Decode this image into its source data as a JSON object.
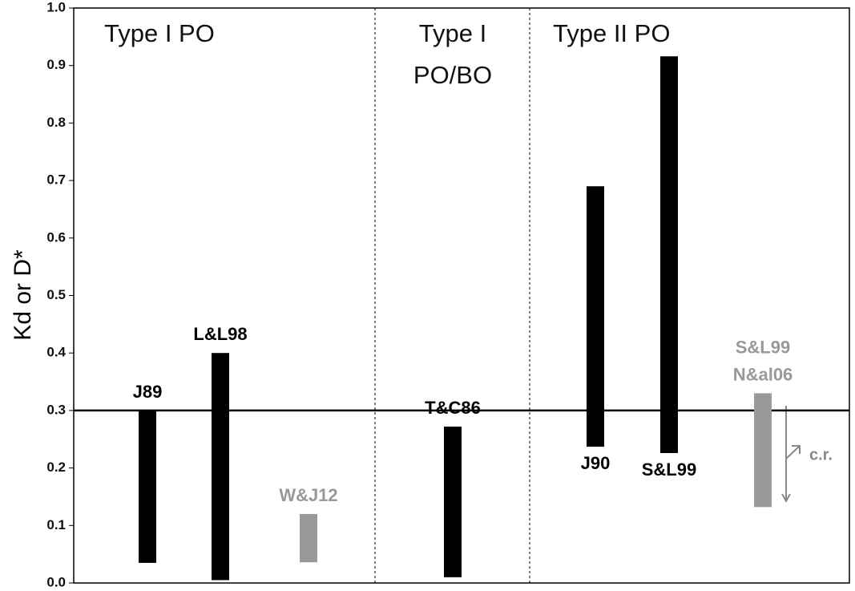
{
  "chart_data": {
    "type": "range_bar",
    "y_label": "Kd or D*",
    "ylim": [
      0,
      1
    ],
    "yticks": [
      {
        "value": 0,
        "label": "0.0"
      },
      0.1,
      0.2,
      0.3,
      0.4,
      0.5,
      0.6,
      0.7,
      0.8,
      0.9,
      {
        "value": 1,
        "label": "1.0"
      }
    ],
    "reference_line": 0.3,
    "sections": [
      [
        "Type I PO"
      ],
      [
        "Type I",
        "PO/BO"
      ],
      [
        "Type II PO"
      ]
    ],
    "bars": [
      {
        "label": [
          "J89"
        ],
        "low": 0.035,
        "high": 0.3,
        "color": "#000000"
      },
      {
        "label": [
          "L&L98"
        ],
        "low": 0.005,
        "high": 0.4,
        "color": "#000000"
      },
      {
        "label": [
          "W&J12"
        ],
        "low": 0.036,
        "high": 0.12,
        "color": "#999999"
      },
      {
        "label": [
          "T&C86"
        ],
        "low": 0.01,
        "high": 0.272,
        "color": "#000000"
      },
      {
        "label": [
          "J90"
        ],
        "low": 0.237,
        "high": 0.69,
        "color": "#000000"
      },
      {
        "label": [
          "S&L99"
        ],
        "low": 0.226,
        "high": 0.916,
        "color": "#000000"
      },
      {
        "label": [
          "S&L99",
          "N&al06"
        ],
        "low": 0.132,
        "high": 0.33,
        "color": "#999999"
      }
    ],
    "annotation": "c.r."
  }
}
